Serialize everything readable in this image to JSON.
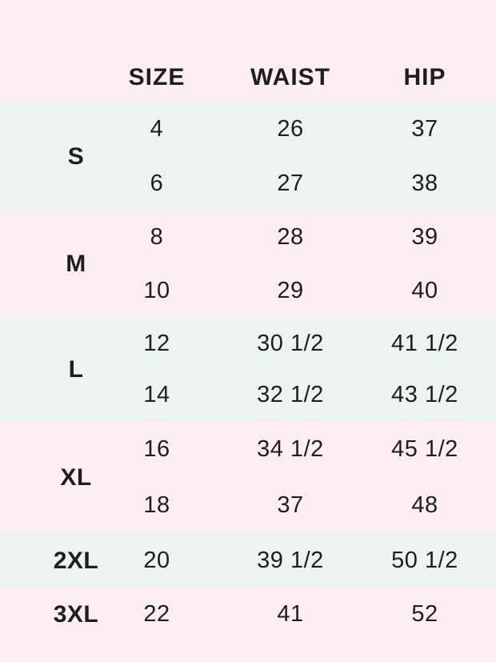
{
  "colors": {
    "pink_band": "#fceef2",
    "mint_band": "#ebf4f0",
    "text": "#1e1e1e"
  },
  "chart_data": {
    "type": "table",
    "columns": [
      "SIZE",
      "WAIST",
      "HIP"
    ],
    "row_groups": [
      {
        "label": "S",
        "rows": [
          {
            "size": "4",
            "waist": "26",
            "hip": "37"
          },
          {
            "size": "6",
            "waist": "27",
            "hip": "38"
          }
        ]
      },
      {
        "label": "M",
        "rows": [
          {
            "size": "8",
            "waist": "28",
            "hip": "39"
          },
          {
            "size": "10",
            "waist": "29",
            "hip": "40"
          }
        ]
      },
      {
        "label": "L",
        "rows": [
          {
            "size": "12",
            "waist": "30 1/2",
            "hip": "41 1/2"
          },
          {
            "size": "14",
            "waist": "32 1/2",
            "hip": "43 1/2"
          }
        ]
      },
      {
        "label": "XL",
        "rows": [
          {
            "size": "16",
            "waist": "34 1/2",
            "hip": "45 1/2"
          },
          {
            "size": "18",
            "waist": "37",
            "hip": "48"
          }
        ]
      },
      {
        "label": "2XL",
        "rows": [
          {
            "size": "20",
            "waist": "39 1/2",
            "hip": "50 1/2"
          }
        ]
      },
      {
        "label": "3XL",
        "rows": [
          {
            "size": "22",
            "waist": "41",
            "hip": "52"
          }
        ]
      }
    ]
  }
}
